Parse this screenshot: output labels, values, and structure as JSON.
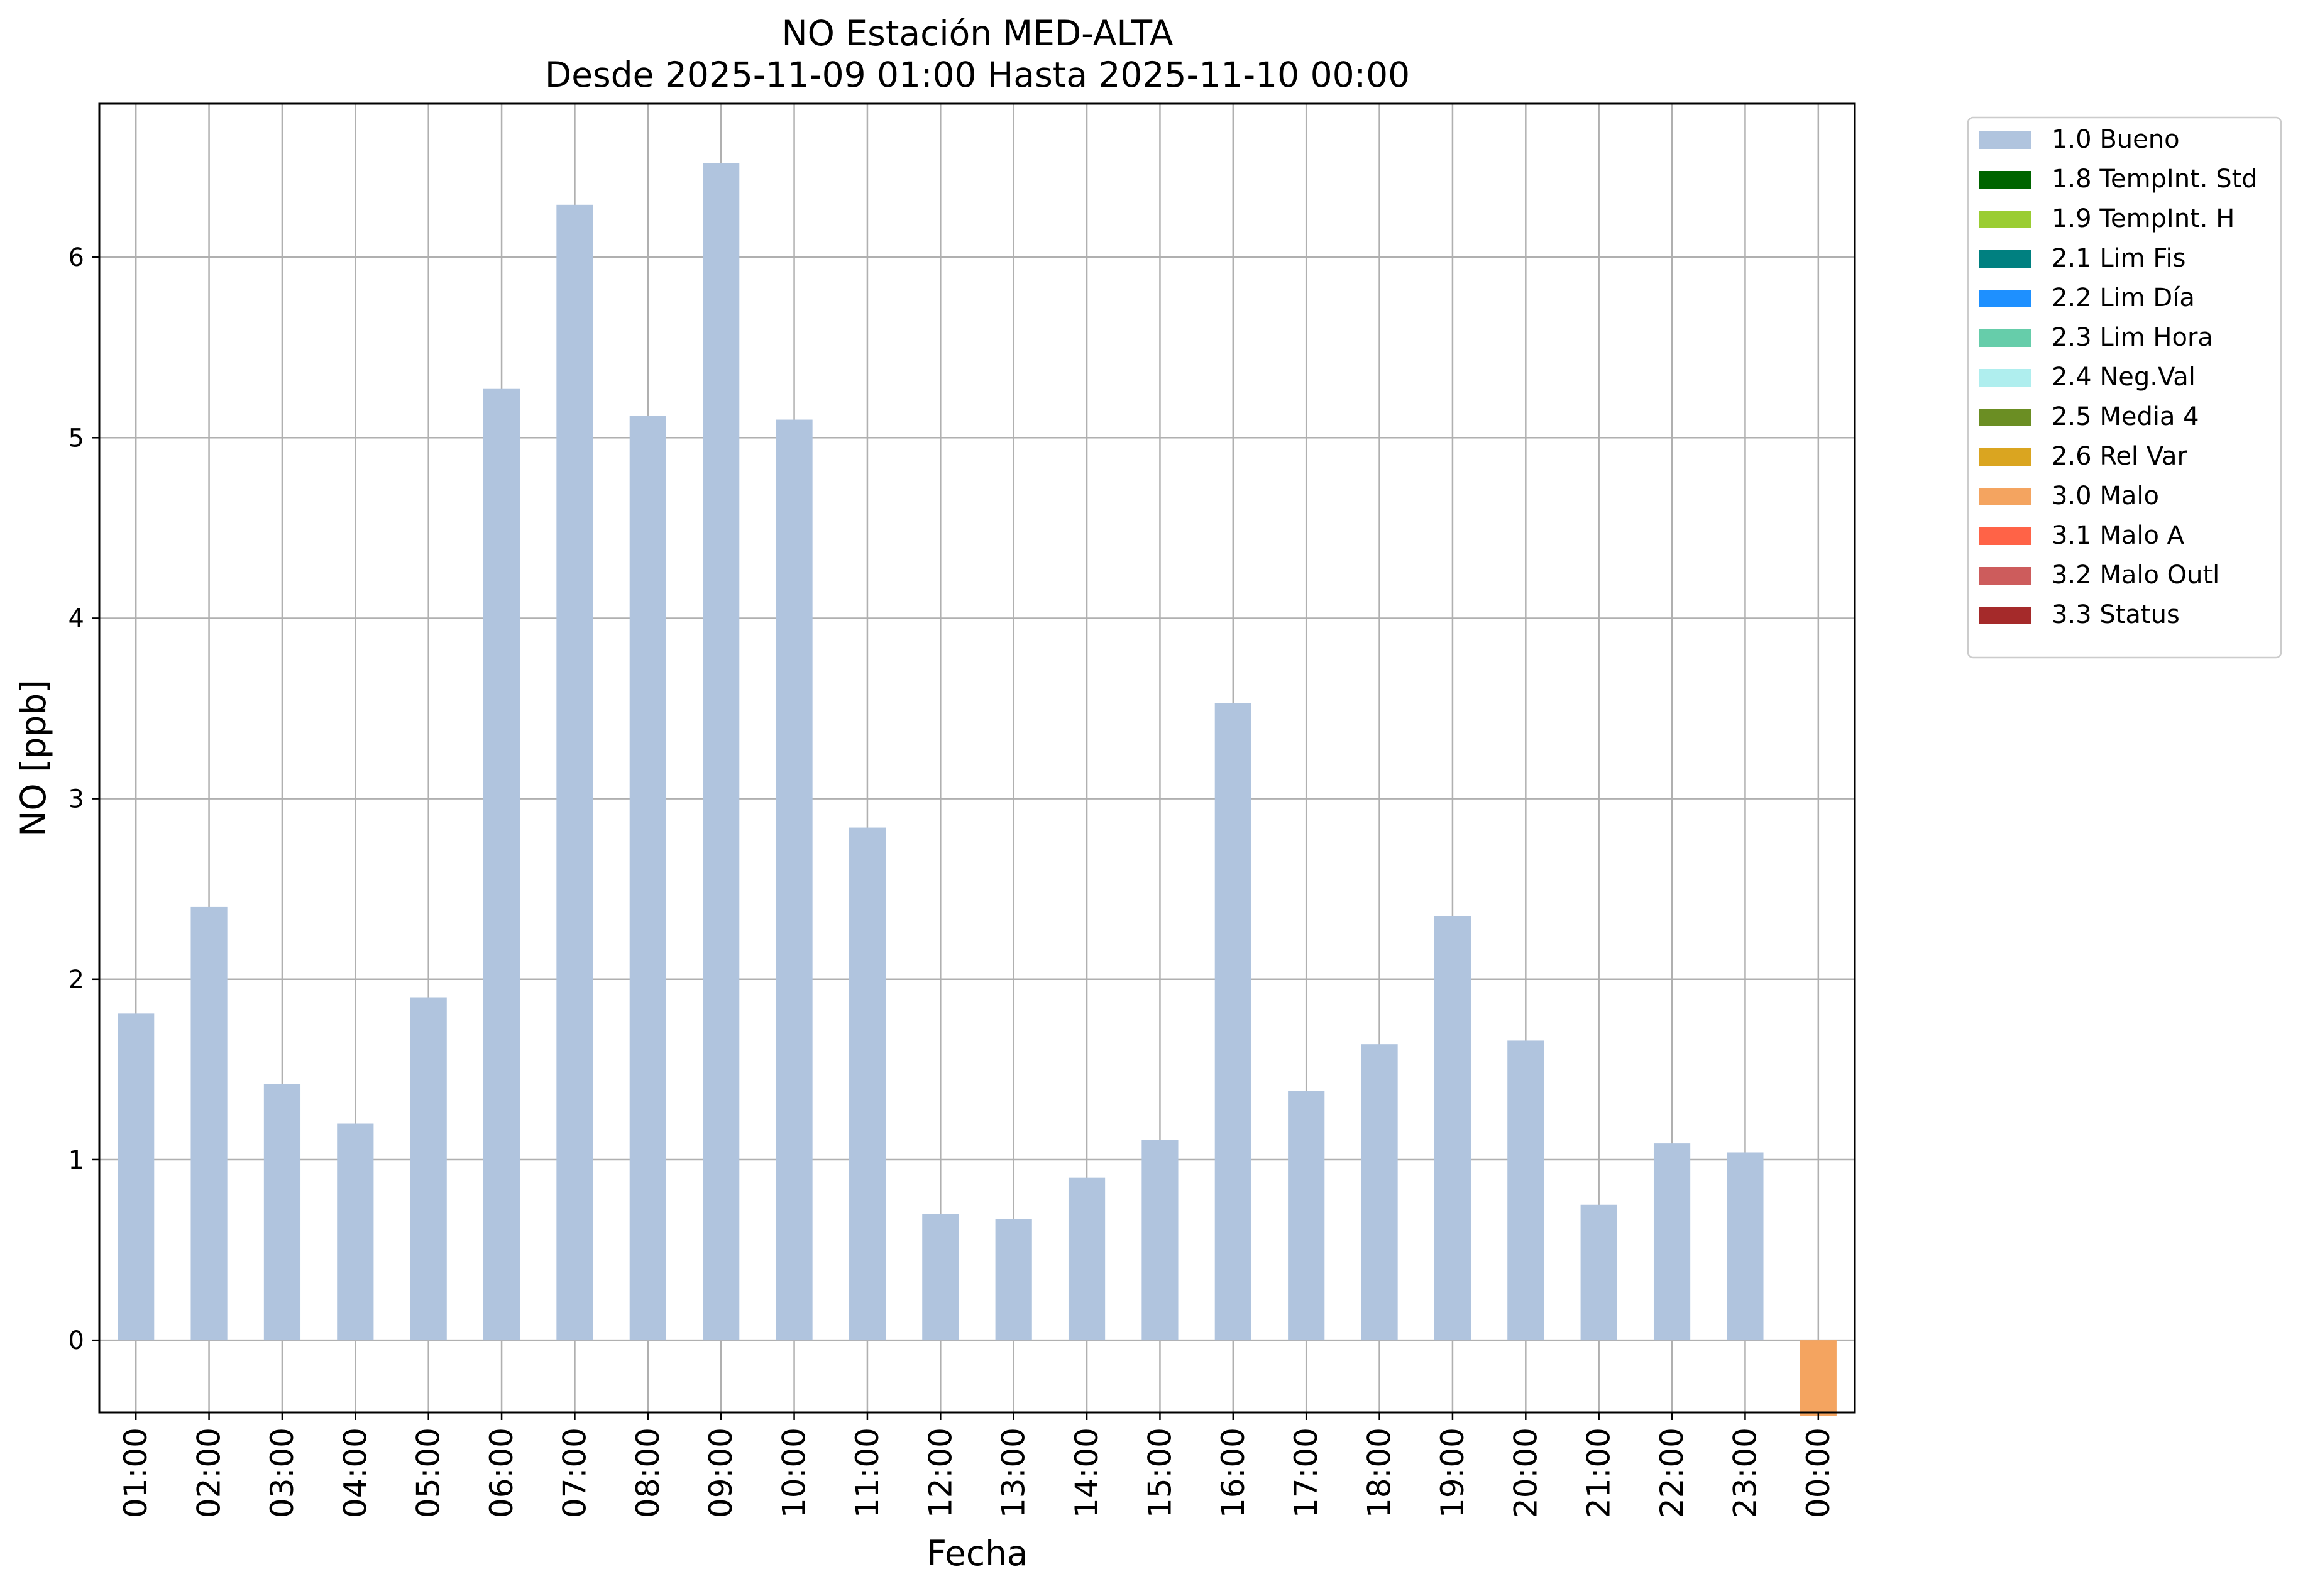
{
  "chart_data": {
    "type": "bar",
    "title": "NO Estación MED-ALTA",
    "subtitle": "Desde 2025-11-09 01:00 Hasta 2025-11-10 00:00",
    "xlabel": "Fecha",
    "ylabel": "NO [ppb]",
    "ylim": [
      -0.4,
      6.85
    ],
    "yticks": [
      0,
      1,
      2,
      3,
      4,
      5,
      6
    ],
    "grid": true,
    "legend_position": "outside top-right",
    "categories": [
      "01:00",
      "02:00",
      "03:00",
      "04:00",
      "05:00",
      "06:00",
      "07:00",
      "08:00",
      "09:00",
      "10:00",
      "11:00",
      "12:00",
      "13:00",
      "14:00",
      "15:00",
      "16:00",
      "17:00",
      "18:00",
      "19:00",
      "20:00",
      "21:00",
      "22:00",
      "23:00",
      "00:00"
    ],
    "values": [
      1.81,
      2.4,
      1.42,
      1.2,
      1.9,
      5.27,
      6.29,
      5.12,
      6.52,
      5.1,
      2.84,
      0.7,
      0.67,
      0.9,
      1.11,
      3.53,
      1.38,
      1.64,
      2.35,
      1.66,
      0.75,
      1.09,
      1.04,
      -0.42
    ],
    "flags": [
      "1.0 Bueno",
      "1.0 Bueno",
      "1.0 Bueno",
      "1.0 Bueno",
      "1.0 Bueno",
      "1.0 Bueno",
      "1.0 Bueno",
      "1.0 Bueno",
      "1.0 Bueno",
      "1.0 Bueno",
      "1.0 Bueno",
      "1.0 Bueno",
      "1.0 Bueno",
      "1.0 Bueno",
      "1.0 Bueno",
      "1.0 Bueno",
      "1.0 Bueno",
      "1.0 Bueno",
      "1.0 Bueno",
      "1.0 Bueno",
      "1.0 Bueno",
      "1.0 Bueno",
      "1.0 Bueno",
      "3.0 Malo"
    ],
    "legend": [
      {
        "label": "1.0 Bueno",
        "color": "#b0c4de"
      },
      {
        "label": "1.8 TempInt. Std",
        "color": "#006400"
      },
      {
        "label": "1.9 TempInt. H",
        "color": "#9acd32"
      },
      {
        "label": "2.1 Lim Fis",
        "color": "#008080"
      },
      {
        "label": "2.2 Lim Día",
        "color": "#1e90ff"
      },
      {
        "label": "2.3 Lim Hora",
        "color": "#66cdaa"
      },
      {
        "label": "2.4 Neg.Val",
        "color": "#afeeee"
      },
      {
        "label": "2.5 Media 4",
        "color": "#6b8e23"
      },
      {
        "label": "2.6 Rel Var",
        "color": "#daa520"
      },
      {
        "label": "3.0 Malo",
        "color": "#f4a460"
      },
      {
        "label": "3.1 Malo A",
        "color": "#ff6347"
      },
      {
        "label": "3.2 Malo Outl",
        "color": "#cd5c5c"
      },
      {
        "label": "3.3 Status",
        "color": "#a52a2a"
      }
    ]
  }
}
